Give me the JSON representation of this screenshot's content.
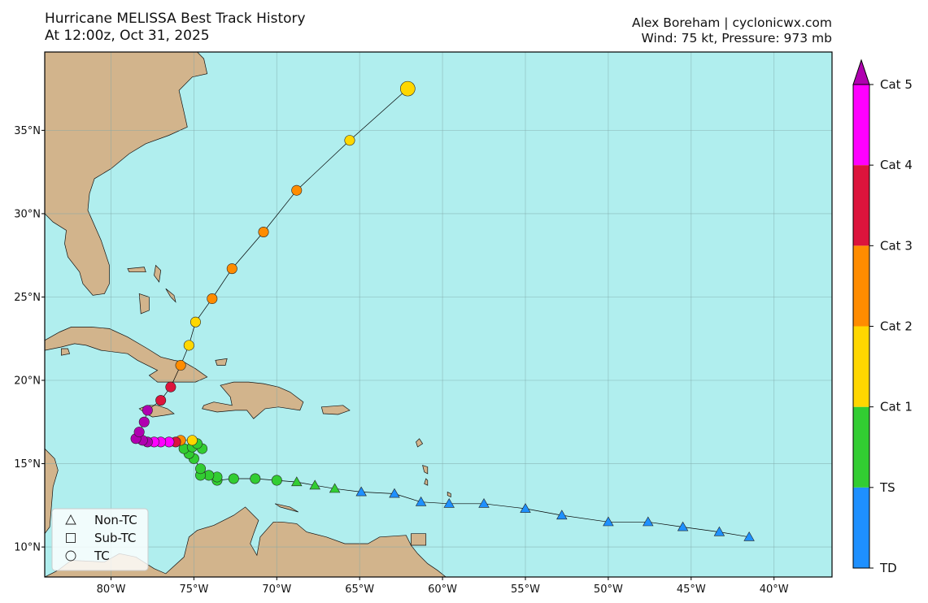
{
  "header": {
    "title": "Hurricane MELISSA Best Track History",
    "subtitle": "At 12:00z, Oct 31, 2025",
    "credit": "Alex Boreham | cyclonicwx.com",
    "status": "Wind: 75 kt, Pressure: 973 mb"
  },
  "map": {
    "lon_range": [
      -84,
      -36.5
    ],
    "lat_range": [
      8.2,
      39.7
    ],
    "ocean_color": "#b0eeee",
    "land_color": "#d2b48c",
    "lon_ticks": [
      {
        "value": -80,
        "label": "80°W"
      },
      {
        "value": -75,
        "label": "75°W"
      },
      {
        "value": -70,
        "label": "70°W"
      },
      {
        "value": -65,
        "label": "65°W"
      },
      {
        "value": -60,
        "label": "60°W"
      },
      {
        "value": -55,
        "label": "55°W"
      },
      {
        "value": -50,
        "label": "50°W"
      },
      {
        "value": -45,
        "label": "45°W"
      },
      {
        "value": -40,
        "label": "40°W"
      }
    ],
    "lat_ticks": [
      {
        "value": 10,
        "label": "10°N"
      },
      {
        "value": 15,
        "label": "15°N"
      },
      {
        "value": 20,
        "label": "20°N"
      },
      {
        "value": 25,
        "label": "25°N"
      },
      {
        "value": 30,
        "label": "30°N"
      },
      {
        "value": 35,
        "label": "35°N"
      }
    ]
  },
  "categories": [
    {
      "name": "TD",
      "color": "#1e90ff"
    },
    {
      "name": "TS",
      "color": "#32cd32"
    },
    {
      "name": "Cat 1",
      "color": "#ffd700"
    },
    {
      "name": "Cat 2",
      "color": "#ff8c00"
    },
    {
      "name": "Cat 3",
      "color": "#dc143c"
    },
    {
      "name": "Cat 4",
      "color": "#ff00ff"
    },
    {
      "name": "Cat 5",
      "color": "#b000b0"
    }
  ],
  "colorbar_labels": [
    "TD",
    "TS",
    "Cat 1",
    "Cat 2",
    "Cat 3",
    "Cat 4",
    "Cat 5"
  ],
  "legend": [
    {
      "symbol": "triangle",
      "label": "Non-TC"
    },
    {
      "symbol": "square",
      "label": "Sub-TC"
    },
    {
      "symbol": "circle",
      "label": "TC"
    }
  ],
  "track": [
    {
      "lon": -41.5,
      "lat": 10.6,
      "cat": "TD",
      "type": "Non-TC"
    },
    {
      "lon": -43.3,
      "lat": 10.9,
      "cat": "TD",
      "type": "Non-TC"
    },
    {
      "lon": -45.5,
      "lat": 11.2,
      "cat": "TD",
      "type": "Non-TC"
    },
    {
      "lon": -47.6,
      "lat": 11.5,
      "cat": "TD",
      "type": "Non-TC"
    },
    {
      "lon": -50.0,
      "lat": 11.5,
      "cat": "TD",
      "type": "Non-TC"
    },
    {
      "lon": -52.8,
      "lat": 11.9,
      "cat": "TD",
      "type": "Non-TC"
    },
    {
      "lon": -55.0,
      "lat": 12.3,
      "cat": "TD",
      "type": "Non-TC"
    },
    {
      "lon": -57.5,
      "lat": 12.6,
      "cat": "TD",
      "type": "Non-TC"
    },
    {
      "lon": -59.6,
      "lat": 12.6,
      "cat": "TD",
      "type": "Non-TC"
    },
    {
      "lon": -61.3,
      "lat": 12.7,
      "cat": "TD",
      "type": "Non-TC"
    },
    {
      "lon": -62.9,
      "lat": 13.2,
      "cat": "TD",
      "type": "Non-TC"
    },
    {
      "lon": -64.9,
      "lat": 13.3,
      "cat": "TD",
      "type": "Non-TC"
    },
    {
      "lon": -66.5,
      "lat": 13.5,
      "cat": "TS",
      "type": "Non-TC"
    },
    {
      "lon": -67.7,
      "lat": 13.7,
      "cat": "TS",
      "type": "Non-TC"
    },
    {
      "lon": -68.8,
      "lat": 13.9,
      "cat": "TS",
      "type": "Non-TC"
    },
    {
      "lon": -70.0,
      "lat": 14.0,
      "cat": "TS",
      "type": "TC"
    },
    {
      "lon": -71.3,
      "lat": 14.1,
      "cat": "TS",
      "type": "TC"
    },
    {
      "lon": -72.6,
      "lat": 14.1,
      "cat": "TS",
      "type": "TC"
    },
    {
      "lon": -73.6,
      "lat": 14.0,
      "cat": "TS",
      "type": "TC"
    },
    {
      "lon": -73.6,
      "lat": 14.2,
      "cat": "TS",
      "type": "TC"
    },
    {
      "lon": -74.1,
      "lat": 14.3,
      "cat": "TS",
      "type": "TC"
    },
    {
      "lon": -74.6,
      "lat": 14.3,
      "cat": "TS",
      "type": "TC"
    },
    {
      "lon": -74.6,
      "lat": 14.7,
      "cat": "TS",
      "type": "TC"
    },
    {
      "lon": -75.0,
      "lat": 15.3,
      "cat": "TS",
      "type": "TC"
    },
    {
      "lon": -75.3,
      "lat": 15.6,
      "cat": "TS",
      "type": "TC"
    },
    {
      "lon": -75.6,
      "lat": 15.9,
      "cat": "TS",
      "type": "TC"
    },
    {
      "lon": -75.1,
      "lat": 16.0,
      "cat": "TS",
      "type": "TC"
    },
    {
      "lon": -74.5,
      "lat": 15.9,
      "cat": "TS",
      "type": "TC"
    },
    {
      "lon": -74.8,
      "lat": 16.2,
      "cat": "TS",
      "type": "TC"
    },
    {
      "lon": -75.1,
      "lat": 16.4,
      "cat": "Cat 1",
      "type": "TC"
    },
    {
      "lon": -75.8,
      "lat": 16.4,
      "cat": "Cat 2",
      "type": "TC"
    },
    {
      "lon": -76.1,
      "lat": 16.3,
      "cat": "Cat 3",
      "type": "TC"
    },
    {
      "lon": -76.5,
      "lat": 16.3,
      "cat": "Cat 4",
      "type": "TC"
    },
    {
      "lon": -77.0,
      "lat": 16.3,
      "cat": "Cat 4",
      "type": "TC"
    },
    {
      "lon": -77.4,
      "lat": 16.3,
      "cat": "Cat 4",
      "type": "TC"
    },
    {
      "lon": -77.8,
      "lat": 16.3,
      "cat": "Cat 5",
      "type": "TC"
    },
    {
      "lon": -78.1,
      "lat": 16.4,
      "cat": "Cat 5",
      "type": "TC"
    },
    {
      "lon": -78.5,
      "lat": 16.5,
      "cat": "Cat 5",
      "type": "TC"
    },
    {
      "lon": -78.3,
      "lat": 16.9,
      "cat": "Cat 5",
      "type": "TC"
    },
    {
      "lon": -78.0,
      "lat": 17.5,
      "cat": "Cat 5",
      "type": "TC"
    },
    {
      "lon": -77.8,
      "lat": 18.2,
      "cat": "Cat 5",
      "type": "TC"
    },
    {
      "lon": -77.0,
      "lat": 18.8,
      "cat": "Cat 3",
      "type": "TC"
    },
    {
      "lon": -76.4,
      "lat": 19.6,
      "cat": "Cat 3",
      "type": "TC"
    },
    {
      "lon": -75.8,
      "lat": 20.9,
      "cat": "Cat 2",
      "type": "TC"
    },
    {
      "lon": -75.3,
      "lat": 22.1,
      "cat": "Cat 1",
      "type": "TC"
    },
    {
      "lon": -74.9,
      "lat": 23.5,
      "cat": "Cat 1",
      "type": "TC"
    },
    {
      "lon": -73.9,
      "lat": 24.9,
      "cat": "Cat 2",
      "type": "TC"
    },
    {
      "lon": -72.7,
      "lat": 26.7,
      "cat": "Cat 2",
      "type": "TC"
    },
    {
      "lon": -70.8,
      "lat": 28.9,
      "cat": "Cat 2",
      "type": "TC"
    },
    {
      "lon": -68.8,
      "lat": 31.4,
      "cat": "Cat 2",
      "type": "TC"
    },
    {
      "lon": -65.6,
      "lat": 34.4,
      "cat": "Cat 1",
      "type": "TC"
    },
    {
      "lon": -62.1,
      "lat": 37.5,
      "cat": "Cat 1",
      "type": "TC",
      "current": true
    }
  ],
  "land": [
    {
      "name": "us-mainland",
      "points": [
        [
          -84,
          39.7
        ],
        [
          -74.8,
          39.7
        ],
        [
          -74.4,
          39.3
        ],
        [
          -74.2,
          38.4
        ],
        [
          -75.1,
          38.2
        ],
        [
          -75.9,
          37.4
        ],
        [
          -75.6,
          36.1
        ],
        [
          -75.4,
          35.2
        ],
        [
          -76.5,
          34.7
        ],
        [
          -77.9,
          34.2
        ],
        [
          -78.9,
          33.6
        ],
        [
          -80.0,
          32.7
        ],
        [
          -81.0,
          32.1
        ],
        [
          -81.3,
          31.2
        ],
        [
          -81.4,
          30.2
        ],
        [
          -80.6,
          28.4
        ],
        [
          -80.1,
          26.9
        ],
        [
          -80.1,
          25.8
        ],
        [
          -80.4,
          25.2
        ],
        [
          -81.1,
          25.1
        ],
        [
          -81.7,
          25.8
        ],
        [
          -81.9,
          26.5
        ],
        [
          -82.6,
          27.4
        ],
        [
          -82.8,
          28.2
        ],
        [
          -82.7,
          29.0
        ],
        [
          -83.5,
          29.5
        ],
        [
          -84,
          30.0
        ]
      ]
    },
    {
      "name": "cuba",
      "points": [
        [
          -84,
          22.4
        ],
        [
          -83.1,
          22.9
        ],
        [
          -82.4,
          23.2
        ],
        [
          -81.2,
          23.2
        ],
        [
          -80.1,
          23.1
        ],
        [
          -79.0,
          22.6
        ],
        [
          -77.8,
          21.9
        ],
        [
          -77.0,
          21.4
        ],
        [
          -76.2,
          21.2
        ],
        [
          -75.6,
          21.1
        ],
        [
          -74.9,
          20.7
        ],
        [
          -74.2,
          20.2
        ],
        [
          -74.9,
          19.9
        ],
        [
          -75.9,
          19.9
        ],
        [
          -77.2,
          19.9
        ],
        [
          -77.7,
          20.3
        ],
        [
          -77.2,
          20.6
        ],
        [
          -78.4,
          21.2
        ],
        [
          -79.0,
          21.6
        ],
        [
          -80.6,
          21.8
        ],
        [
          -81.5,
          22.1
        ],
        [
          -82.2,
          22.2
        ],
        [
          -83.0,
          22.0
        ],
        [
          -84,
          21.8
        ]
      ]
    },
    {
      "name": "isla-juventud",
      "points": [
        [
          -83.0,
          21.9
        ],
        [
          -82.6,
          21.9
        ],
        [
          -82.5,
          21.6
        ],
        [
          -83.0,
          21.5
        ]
      ]
    },
    {
      "name": "jamaica",
      "points": [
        [
          -78.3,
          18.3
        ],
        [
          -77.8,
          18.5
        ],
        [
          -77.2,
          18.5
        ],
        [
          -76.6,
          18.3
        ],
        [
          -76.2,
          18.0
        ],
        [
          -76.8,
          17.9
        ],
        [
          -77.5,
          17.8
        ],
        [
          -77.9,
          18.0
        ]
      ]
    },
    {
      "name": "hispaniola",
      "points": [
        [
          -74.4,
          18.5
        ],
        [
          -73.8,
          18.7
        ],
        [
          -72.7,
          18.5
        ],
        [
          -72.8,
          19.0
        ],
        [
          -73.4,
          19.7
        ],
        [
          -72.6,
          19.9
        ],
        [
          -71.7,
          19.9
        ],
        [
          -70.8,
          19.8
        ],
        [
          -69.9,
          19.6
        ],
        [
          -69.2,
          19.3
        ],
        [
          -68.4,
          18.7
        ],
        [
          -68.6,
          18.2
        ],
        [
          -69.9,
          18.4
        ],
        [
          -70.7,
          18.3
        ],
        [
          -71.4,
          17.7
        ],
        [
          -71.8,
          18.2
        ],
        [
          -72.5,
          18.2
        ],
        [
          -73.6,
          18.1
        ],
        [
          -74.5,
          18.3
        ]
      ]
    },
    {
      "name": "puerto-rico",
      "points": [
        [
          -67.3,
          18.4
        ],
        [
          -66.0,
          18.5
        ],
        [
          -65.6,
          18.2
        ],
        [
          -66.3,
          17.95
        ],
        [
          -67.2,
          18.0
        ]
      ]
    },
    {
      "name": "andros",
      "points": [
        [
          -78.3,
          25.2
        ],
        [
          -77.7,
          25.0
        ],
        [
          -77.7,
          24.2
        ],
        [
          -78.2,
          24.0
        ]
      ]
    },
    {
      "name": "grand-bahama",
      "points": [
        [
          -79.0,
          26.7
        ],
        [
          -78.0,
          26.8
        ],
        [
          -77.9,
          26.5
        ],
        [
          -78.9,
          26.5
        ]
      ]
    },
    {
      "name": "abaco",
      "points": [
        [
          -77.3,
          26.9
        ],
        [
          -77.0,
          26.6
        ],
        [
          -77.1,
          25.9
        ],
        [
          -77.4,
          26.3
        ]
      ]
    },
    {
      "name": "eleuthera",
      "points": [
        [
          -76.7,
          25.5
        ],
        [
          -76.2,
          25.1
        ],
        [
          -76.1,
          24.7
        ],
        [
          -76.4,
          25.0
        ]
      ]
    },
    {
      "name": "great-inagua",
      "points": [
        [
          -73.7,
          21.2
        ],
        [
          -73.0,
          21.3
        ],
        [
          -73.1,
          20.9
        ],
        [
          -73.6,
          20.9
        ]
      ]
    },
    {
      "name": "south-america",
      "points": [
        [
          -84,
          8.2
        ],
        [
          -83.2,
          8.6
        ],
        [
          -82.4,
          9.2
        ],
        [
          -80.4,
          9.1
        ],
        [
          -79.5,
          9.6
        ],
        [
          -78.5,
          9.4
        ],
        [
          -77.4,
          8.7
        ],
        [
          -76.7,
          8.4
        ],
        [
          -75.6,
          9.4
        ],
        [
          -75.3,
          10.6
        ],
        [
          -74.8,
          11.0
        ],
        [
          -73.8,
          11.3
        ],
        [
          -72.6,
          11.9
        ],
        [
          -71.9,
          12.4
        ],
        [
          -71.1,
          11.6
        ],
        [
          -71.4,
          10.8
        ],
        [
          -71.6,
          10.2
        ],
        [
          -71.2,
          9.5
        ],
        [
          -71.0,
          10.6
        ],
        [
          -70.2,
          11.5
        ],
        [
          -69.7,
          11.5
        ],
        [
          -68.8,
          11.4
        ],
        [
          -68.2,
          10.9
        ],
        [
          -67.0,
          10.6
        ],
        [
          -65.9,
          10.2
        ],
        [
          -64.5,
          10.2
        ],
        [
          -63.8,
          10.6
        ],
        [
          -62.2,
          10.7
        ],
        [
          -61.9,
          10.1
        ],
        [
          -61.5,
          9.6
        ],
        [
          -60.9,
          9.0
        ],
        [
          -60.3,
          8.6
        ],
        [
          -59.8,
          8.2
        ]
      ]
    },
    {
      "name": "trinidad",
      "points": [
        [
          -61.9,
          10.8
        ],
        [
          -61.0,
          10.8
        ],
        [
          -61.0,
          10.1
        ],
        [
          -61.9,
          10.1
        ]
      ]
    },
    {
      "name": "central-america",
      "points": [
        [
          -84,
          15.9
        ],
        [
          -83.4,
          15.3
        ],
        [
          -83.2,
          14.6
        ],
        [
          -83.5,
          13.6
        ],
        [
          -83.6,
          12.4
        ],
        [
          -83.7,
          11.2
        ],
        [
          -84,
          10.8
        ]
      ]
    },
    {
      "name": "lesser-antilles-north",
      "points": [
        [
          -61.6,
          16.3
        ],
        [
          -61.4,
          16.5
        ],
        [
          -61.2,
          16.2
        ],
        [
          -61.5,
          16.0
        ]
      ]
    },
    {
      "name": "martinique",
      "points": [
        [
          -61.2,
          14.9
        ],
        [
          -60.9,
          14.8
        ],
        [
          -60.9,
          14.4
        ],
        [
          -61.1,
          14.5
        ]
      ]
    },
    {
      "name": "st-lucia",
      "points": [
        [
          -61.0,
          14.1
        ],
        [
          -60.9,
          14.0
        ],
        [
          -60.9,
          13.7
        ],
        [
          -61.1,
          13.8
        ]
      ]
    },
    {
      "name": "barbados",
      "points": [
        [
          -59.7,
          13.3
        ],
        [
          -59.5,
          13.2
        ],
        [
          -59.5,
          13.0
        ],
        [
          -59.7,
          13.1
        ]
      ]
    },
    {
      "name": "aruba-curacao",
      "points": [
        [
          -70.1,
          12.6
        ],
        [
          -69.8,
          12.4
        ],
        [
          -68.7,
          12.1
        ],
        [
          -69.2,
          12.4
        ]
      ]
    }
  ]
}
